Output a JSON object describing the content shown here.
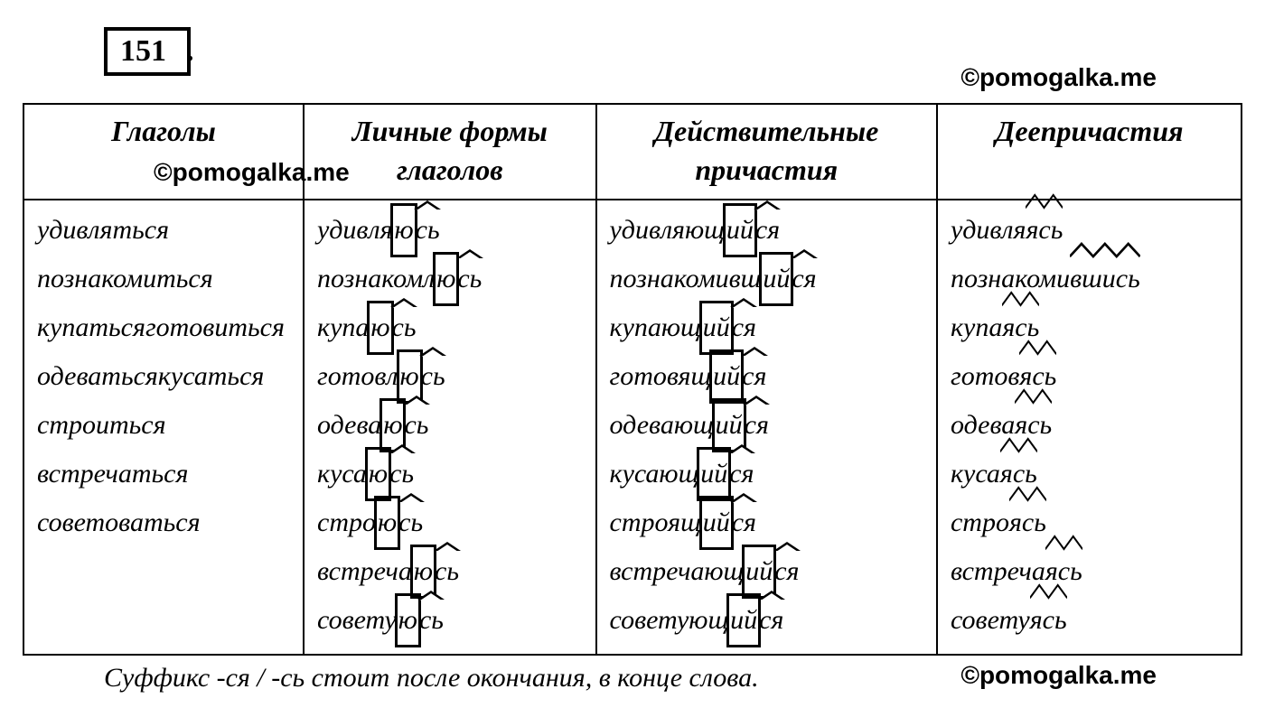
{
  "exercise_number": "151",
  "watermark": "©pomogalka.me",
  "footnote": "Суффикс -ся / -сь стоит после окончания, в конце слова.",
  "headers": {
    "col1": "Глаголы",
    "col2_line1": "Личные формы",
    "col2_line2": "глаголов",
    "col3_line1": "Действительные",
    "col3_line2": "причастия",
    "col4": "Деепричастия"
  },
  "styling": {
    "border_color": "#000000",
    "border_width": 2,
    "background": "#ffffff",
    "text_color": "#000000",
    "header_fontsize": 32,
    "cell_fontsize": 30,
    "font_family": "Times New Roman",
    "font_style": "italic",
    "exercise_box_border": 4,
    "annotation_box_border": 3,
    "caret_color": "#000000"
  },
  "rows": [
    {
      "infinitive": "удивляться",
      "personal": {
        "stem": "удивля",
        "box": "ю",
        "caret": "сь"
      },
      "participle": {
        "stem": "удивляющ",
        "box": "ий",
        "caret": "ся"
      },
      "gerund": {
        "stem": "удивля",
        "caret2": "ясь"
      }
    },
    {
      "infinitive": "познакомиться",
      "personal": {
        "stem": "познакомл",
        "box": "ю",
        "caret": "сь"
      },
      "participle": {
        "stem": "познакомивш",
        "box": "ий",
        "caret": "ся"
      },
      "gerund": {
        "stem": "познакоми",
        "caret3": "вшись"
      }
    },
    {
      "infinitive": "купаться",
      "personal": {
        "stem": "купа",
        "box": "ю",
        "caret": "сь"
      },
      "participle": {
        "stem": "купающ",
        "box": "ий",
        "caret": "ся"
      },
      "gerund": {
        "stem": "купа",
        "caret2": "ясь"
      }
    },
    {
      "infinitive": "готовиться",
      "personal": {
        "stem": "готовл",
        "box": "ю",
        "caret": "сь"
      },
      "participle": {
        "stem": "готовящ",
        "box": "ий",
        "caret": "ся"
      },
      "gerund": {
        "stem": "готов",
        "caret2": "ясь"
      }
    },
    {
      "infinitive": "одеваться",
      "personal": {
        "stem": "одева",
        "box": "ю",
        "caret": "сь"
      },
      "participle": {
        "stem": "одевающ",
        "box": "ий",
        "caret": "ся"
      },
      "gerund": {
        "stem": "одева",
        "caret2": "ясь"
      }
    },
    {
      "infinitive": "кусаться",
      "personal": {
        "stem": "куса",
        "box": "ю",
        "caret": "сь"
      },
      "participle": {
        "stem": "кусающ",
        "box": "ий",
        "caret": "ся"
      },
      "gerund": {
        "stem": "куса",
        "caret2": "ясь"
      }
    },
    {
      "infinitive": "строиться",
      "personal": {
        "stem": "стро",
        "box": "ю",
        "caret": "сь"
      },
      "participle": {
        "stem": "строящ",
        "box": "ий",
        "caret": "ся"
      },
      "gerund": {
        "stem": "стро",
        "caret2": "ясь"
      }
    },
    {
      "infinitive": "встречаться",
      "personal": {
        "stem": "встреча",
        "box": "ю",
        "caret": "сь"
      },
      "participle": {
        "stem": "встречающ",
        "box": "ий",
        "caret": "ся"
      },
      "gerund": {
        "stem": "встреча",
        "caret2": "ясь"
      }
    },
    {
      "infinitive": "советоваться",
      "personal": {
        "stem": "совету",
        "box": "ю",
        "caret": "сь"
      },
      "participle": {
        "stem": "советующ",
        "box": "ий",
        "caret": "ся"
      },
      "gerund": {
        "stem": "совету",
        "caret2": "ясь"
      }
    }
  ]
}
